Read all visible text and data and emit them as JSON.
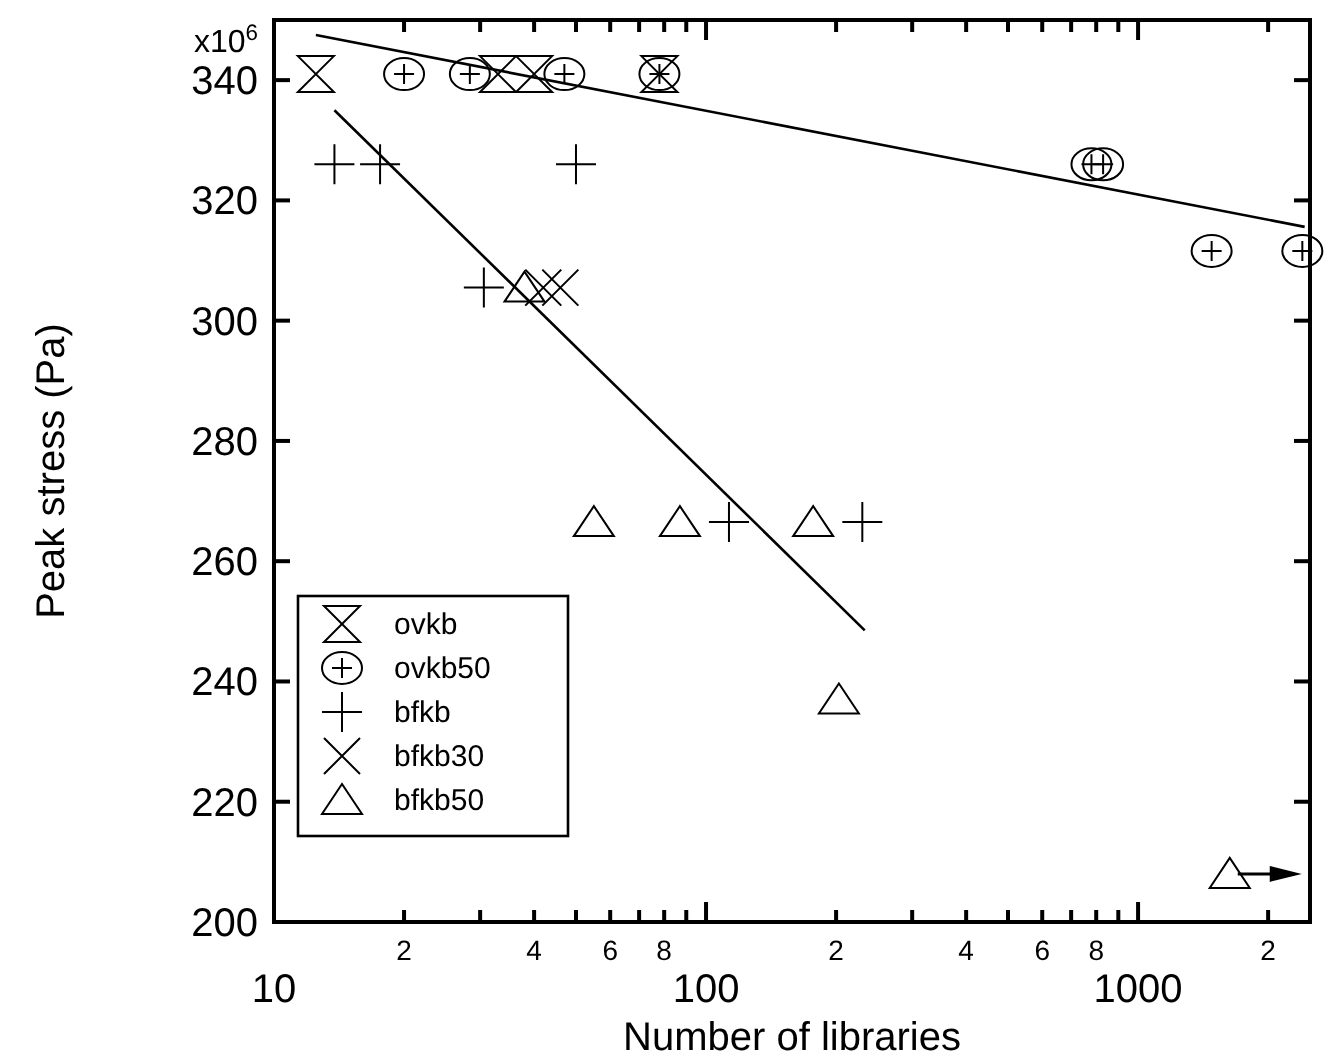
{
  "chart_data": {
    "type": "scatter",
    "xlabel": "Number of libraries",
    "ylabel": "Peak stress (Pa)",
    "log": "x",
    "grid": false,
    "legend": "bottom left",
    "xlim": [
      10,
      2500
    ],
    "ylim": [
      200,
      350
    ],
    "xticks": [
      10,
      {
        "value": 20,
        "label": null
      },
      {
        "value": 30,
        "label": null
      },
      {
        "value": 40,
        "label": null
      },
      {
        "value": 50,
        "label": null
      },
      {
        "value": 60,
        "label": null
      },
      {
        "value": 70,
        "label": null
      },
      {
        "value": 80,
        "label": null
      },
      {
        "value": 90,
        "label": null
      },
      100,
      {
        "value": 200,
        "label": null
      },
      {
        "value": 300,
        "label": null
      },
      {
        "value": 400,
        "label": null
      },
      {
        "value": 500,
        "label": null
      },
      {
        "value": 600,
        "label": null
      },
      {
        "value": 700,
        "label": null
      },
      {
        "value": 800,
        "label": null
      },
      {
        "value": 900,
        "label": null
      },
      1000,
      {
        "value": 2000,
        "label": null
      }
    ],
    "yticks": [
      200,
      220,
      240,
      260,
      280,
      300,
      320,
      340
    ],
    "annotations": [
      "x10$^{6}$",
      "2",
      "4",
      "6",
      "8",
      "2",
      "4",
      "6",
      "8",
      "2"
    ],
    "series": [
      {
        "name": "ovkb",
        "color": "#000000",
        "x": [
          12.5,
          33,
          40,
          78
        ],
        "values": [
          341,
          341,
          341,
          341
        ]
      },
      {
        "name": "ovkb50",
        "color": "#000000",
        "marker": "circle",
        "x": [
          20,
          28.4,
          47,
          78,
          780,
          830,
          1480,
          2400
        ],
        "values": [
          341,
          341,
          341,
          341,
          326,
          326,
          311.6,
          311.6
        ]
      },
      {
        "name": "bfkb",
        "color": "#000000",
        "marker": "cross",
        "x": [
          13.8,
          17.6,
          50,
          30.6,
          113,
          230
        ],
        "values": [
          326,
          326,
          326,
          305.5,
          266.5,
          266.5
        ]
      },
      {
        "name": "bfkb30",
        "color": "#000000",
        "marker": "x",
        "x": [
          42,
          46
        ],
        "values": [
          305.5,
          305.5
        ]
      },
      {
        "name": "bfkb50",
        "color": "#000000",
        "marker": "triangle",
        "x": [
          38,
          55,
          87,
          177,
          203,
          1630
        ],
        "values": [
          305.5,
          266.5,
          266.5,
          266.5,
          237,
          208
        ]
      },
      {
        "type": "line",
        "color": "#000000",
        "marker": "none",
        "x": [
          12.5,
          2430
        ],
        "values": [
          347.5,
          315.6
        ]
      },
      {
        "type": "line",
        "color": "#000000",
        "marker": "none",
        "x": [
          13.8,
          233
        ],
        "values": [
          335,
          248.5
        ]
      }
    ]
  }
}
